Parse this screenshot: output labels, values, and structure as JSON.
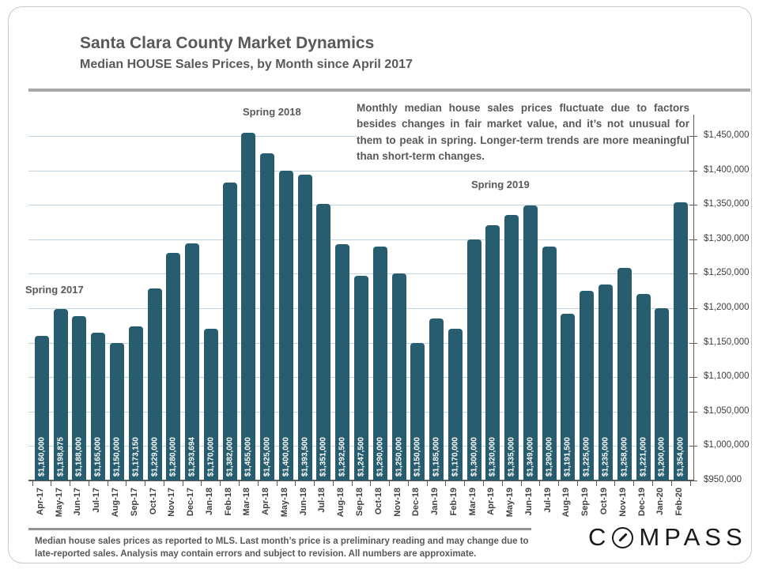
{
  "header": {
    "title": "Santa Clara County Market Dynamics",
    "subtitle": "Median HOUSE Sales Prices, by Month since April 2017"
  },
  "annotation_box": {
    "text": "Monthly median house sales prices fluctuate due to factors besides changes in fair market value, and it’s not unusual for them to peak in spring. Longer-term trends are more meaningful than short-term changes."
  },
  "spring_annotations": {
    "s2017": "Spring 2017",
    "s2018": "Spring 2018",
    "s2019": "Spring 2019"
  },
  "chart_data": {
    "type": "bar",
    "title": "Median HOUSE Sales Prices, by Month since April 2017",
    "categories": [
      "Apr-17",
      "May-17",
      "Jun-17",
      "Jul-17",
      "Aug-17",
      "Sep-17",
      "Oct-17",
      "Nov-17",
      "Dec-17",
      "Jan-18",
      "Feb-18",
      "Mar-18",
      "Apr-18",
      "May-18",
      "Jun-18",
      "Jul-18",
      "Aug-18",
      "Sep-18",
      "Oct-18",
      "Nov-18",
      "Dec-18",
      "Jan-19",
      "Feb-19",
      "Mar-19",
      "Apr-19",
      "May-19",
      "Jun-19",
      "Jul-19",
      "Aug-19",
      "Sep-19",
      "Oct-19",
      "Nov-19",
      "Dec-19",
      "Jan-20",
      "Feb-20"
    ],
    "values": [
      1160000,
      1198875,
      1188000,
      1165000,
      1150000,
      1173150,
      1229000,
      1280000,
      1293694,
      1170000,
      1382000,
      1455000,
      1425000,
      1400000,
      1393500,
      1351000,
      1292500,
      1247500,
      1290000,
      1250000,
      1150000,
      1185000,
      1170000,
      1300000,
      1320000,
      1335000,
      1349000,
      1290000,
      1191500,
      1225000,
      1235000,
      1258000,
      1221000,
      1200000,
      1354000
    ],
    "bar_labels": [
      "$1,160,000",
      "$1,198,875",
      "$1,188,000",
      "$1,165,000",
      "$1,150,000",
      "$1,173,150",
      "$1,229,000",
      "$1,280,000",
      "$1,293,694",
      "$1,170,000",
      "$1,382,000",
      "$1,455,000",
      "$1,425,000",
      "$1,400,000",
      "$1,393,500",
      "$1,351,000",
      "$1,292,500",
      "$1,247,500",
      "$1,290,000",
      "$1,250,000",
      "$1,150,000",
      "$1,185,000",
      "$1,170,000",
      "$1,300,000",
      "$1,320,000",
      "$1,335,000",
      "$1,349,000",
      "$1,290,000",
      "$1,191,500",
      "$1,225,000",
      "$1,235,000",
      "$1,258,000",
      "$1,221,000",
      "$1,200,000",
      "$1,354,000"
    ],
    "y_axis": {
      "ticks": [
        {
          "value": 1450000,
          "label": "$1,450,000"
        },
        {
          "value": 1400000,
          "label": "$1,400,000"
        },
        {
          "value": 1350000,
          "label": "$1,350,000"
        },
        {
          "value": 1300000,
          "label": "$1,300,000"
        },
        {
          "value": 1250000,
          "label": "$1,250,000"
        },
        {
          "value": 1200000,
          "label": "$1,200,000"
        },
        {
          "value": 1150000,
          "label": "$1,150,000"
        },
        {
          "value": 1100000,
          "label": "$1,100,000"
        },
        {
          "value": 1050000,
          "label": "$1,050,000"
        },
        {
          "value": 1000000,
          "label": "$1,000,000"
        },
        {
          "value": 950000,
          "label": "$950,000"
        }
      ],
      "position": "right"
    },
    "ylim": [
      950000,
      1481000
    ],
    "grid": true,
    "bar_color": "#275d6e",
    "gridline_color": "#c4d4dd",
    "value_label_color": "#ffffff"
  },
  "footer": {
    "text": "Median house sales prices as reported to MLS. Last month’s price is a preliminary reading and may change due to late-reported sales. Analysis  may contain  errors and subject to revision. All numbers are approximate."
  },
  "logo": {
    "name": "COMPASS",
    "letters_before": "C",
    "letters_after": "MPASS"
  }
}
